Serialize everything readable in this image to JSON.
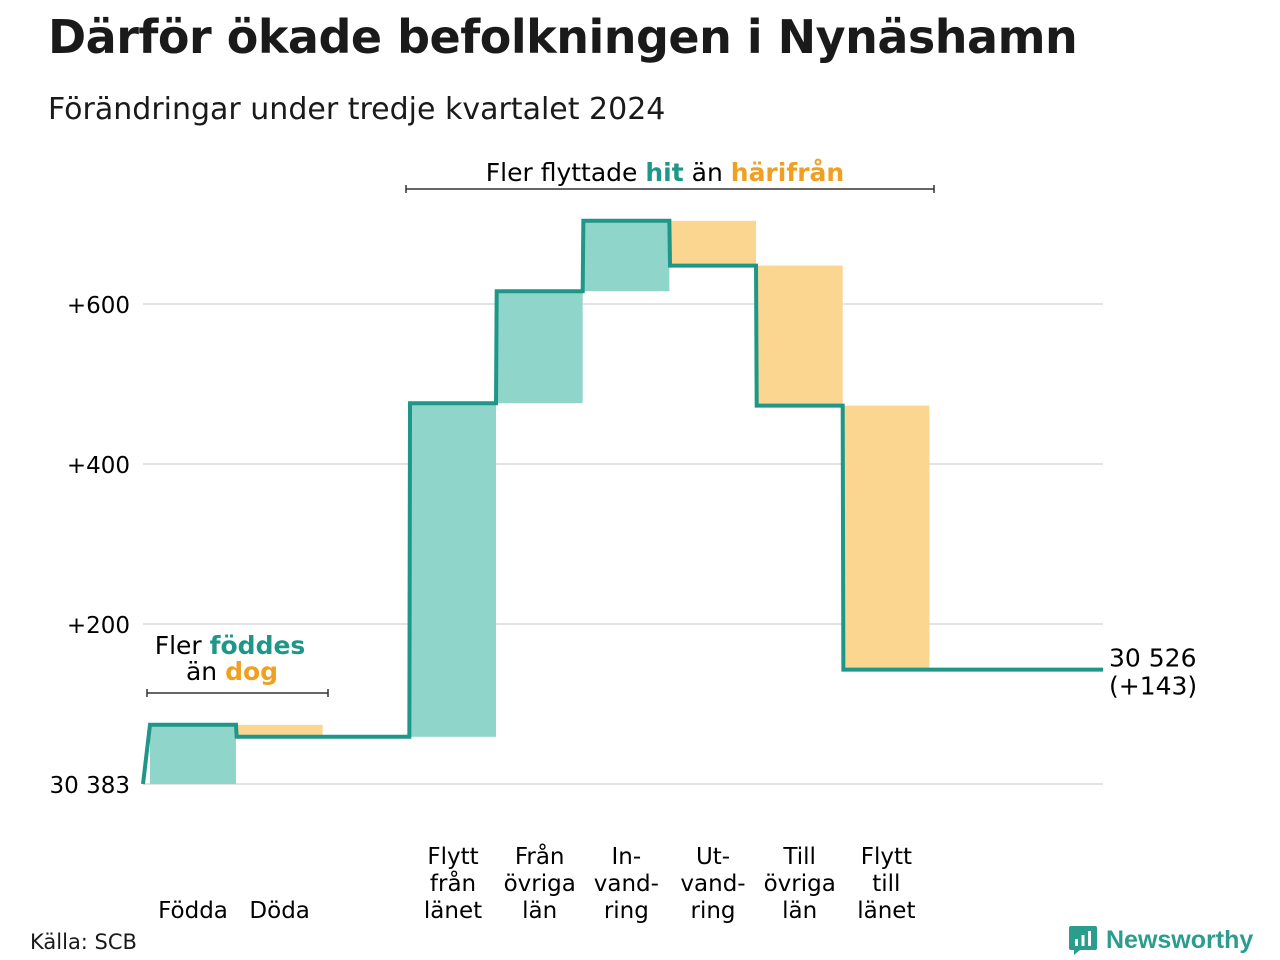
{
  "title": "Därför ökade befolkningen i Nynäshamn",
  "subtitle": "Förändringar under tredje kvartalet 2024",
  "source": "Källa: SCB",
  "brand": "Newsworthy",
  "colors": {
    "increase_fill": "#8fd5ca",
    "decrease_fill": "#fad690",
    "step_line": "#1e9688",
    "accent_teal": "#1e9688",
    "accent_orange": "#f0a020",
    "grid": "#e3e3e3"
  },
  "annotations": {
    "natural": {
      "line1_prefix": "Fler ",
      "line1_highlight": "föddes",
      "line2_prefix": "än ",
      "line2_highlight": "dog"
    },
    "migration": {
      "prefix": "Fler flyttade ",
      "hit": "hit",
      "middle": " än ",
      "harifran": "härifrån"
    }
  },
  "chart_data": {
    "type": "waterfall",
    "title": "Därför ökade befolkningen i Nynäshamn",
    "subtitle": "Förändringar under tredje kvartalet 2024",
    "baseline": 30383,
    "baseline_label": "30 383",
    "end_value": 30526,
    "end_label": "30 526",
    "end_change_label": "(+143)",
    "ylim": [
      0,
      700
    ],
    "yticks": [
      {
        "value": 200,
        "label": "+200"
      },
      {
        "value": 400,
        "label": "+400"
      },
      {
        "value": 600,
        "label": "+600"
      }
    ],
    "steps": [
      {
        "key": "fodda",
        "label_lines": [
          "Födda"
        ],
        "change": 74,
        "kind": "increase"
      },
      {
        "key": "doda",
        "label_lines": [
          "Döda"
        ],
        "change": -15,
        "kind": "decrease"
      },
      {
        "key": "gap",
        "label_lines": [],
        "change": 0,
        "kind": "none"
      },
      {
        "key": "flytt_fran_lanet",
        "label_lines": [
          "Flytt",
          "från",
          "länet"
        ],
        "change": 417,
        "kind": "increase"
      },
      {
        "key": "fran_ovriga_lan",
        "label_lines": [
          "Från",
          "övriga",
          "län"
        ],
        "change": 140,
        "kind": "increase"
      },
      {
        "key": "invandring",
        "label_lines": [
          "In-",
          "vand-",
          "ring"
        ],
        "change": 88,
        "kind": "increase"
      },
      {
        "key": "utvandring",
        "label_lines": [
          "Ut-",
          "vand-",
          "ring"
        ],
        "change": -56,
        "kind": "decrease"
      },
      {
        "key": "till_ovriga_lan",
        "label_lines": [
          "Till",
          "övriga",
          "län"
        ],
        "change": -175,
        "kind": "decrease"
      },
      {
        "key": "flytt_till_lanet",
        "label_lines": [
          "Flytt",
          "till",
          "länet"
        ],
        "change": -330,
        "kind": "decrease"
      }
    ],
    "grid": true,
    "legend": "none"
  }
}
